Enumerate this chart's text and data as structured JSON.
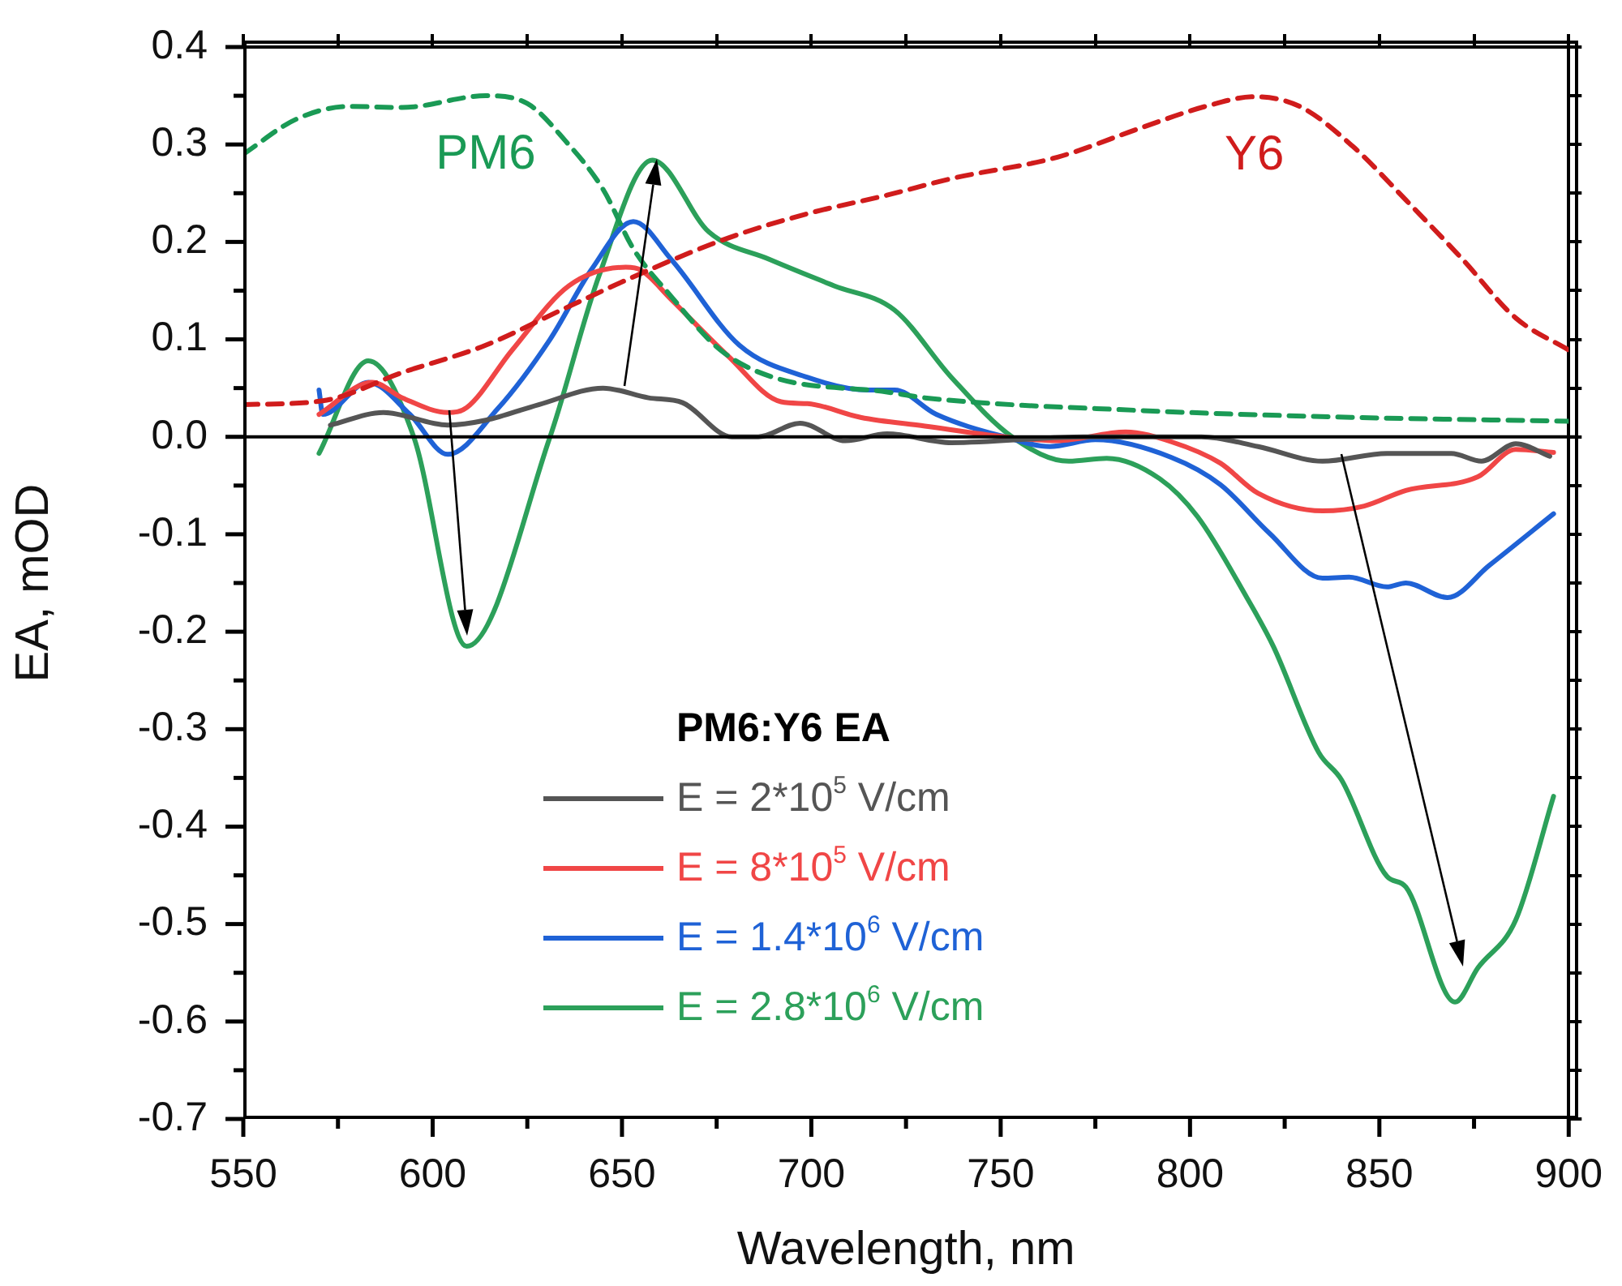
{
  "chart_data": {
    "type": "line",
    "xlabel": "Wavelength, nm",
    "ylabel": "EA, mOD",
    "legend_title": "PM6:Y6 EA",
    "legend": "bottom",
    "grid": false,
    "line_style": "solid",
    "marker": "none",
    "xlim": [
      550,
      900
    ],
    "xticks": [
      550,
      {
        "value": 575,
        "label": null
      },
      600,
      {
        "value": 625,
        "label": null
      },
      650,
      {
        "value": 675,
        "label": null
      },
      700,
      {
        "value": 725,
        "label": null
      },
      750,
      {
        "value": 775,
        "label": null
      },
      800,
      {
        "value": 825,
        "label": null
      },
      850,
      {
        "value": 875,
        "label": null
      },
      900
    ],
    "ylim": [
      -0.7,
      0.4
    ],
    "yticks": [
      -0.7,
      {
        "value": -0.65,
        "label": null
      },
      -0.6,
      {
        "value": -0.55,
        "label": null
      },
      -0.5,
      {
        "value": -0.45,
        "label": null
      },
      -0.4,
      {
        "value": -0.35,
        "label": null
      },
      -0.3,
      {
        "value": -0.25,
        "label": null
      },
      -0.2,
      {
        "value": -0.15,
        "label": null
      },
      -0.1,
      {
        "value": -0.05,
        "label": null
      },
      {
        "value": 0,
        "label": "0.0"
      },
      {
        "value": 0.05,
        "label": null
      },
      0.1,
      {
        "value": 0.15,
        "label": null
      },
      0.2,
      {
        "value": 0.25,
        "label": null
      },
      0.3,
      {
        "value": 0.35,
        "label": null
      },
      0.4
    ],
    "ref_lines": [
      {
        "axis": "y",
        "value": 0,
        "color": "#000000"
      }
    ],
    "series": [
      {
        "name": "PM6",
        "color": "#1a9a55",
        "line_style": "dashed",
        "x": [
          550,
          564,
          578,
          592,
          614,
          625,
          635,
          645,
          653,
          663,
          676,
          690,
          720,
          730,
          787,
          843,
          900
        ],
        "values": [
          0.29,
          0.326,
          0.339,
          0.338,
          0.35,
          0.342,
          0.304,
          0.254,
          0.193,
          0.144,
          0.089,
          0.061,
          0.046,
          0.04,
          0.027,
          0.02,
          0.016
        ]
      },
      {
        "name": "Y6",
        "color": "#d01c1c",
        "line_style": "dashed",
        "x": [
          550,
          571,
          592,
          614,
          635,
          657,
          678,
          699,
          720,
          737,
          765,
          787,
          804,
          817,
          829,
          843,
          857,
          872,
          886,
          900
        ],
        "values": [
          0.033,
          0.037,
          0.066,
          0.094,
          0.132,
          0.171,
          0.204,
          0.229,
          0.248,
          0.265,
          0.287,
          0.317,
          0.339,
          0.349,
          0.339,
          0.298,
          0.243,
          0.182,
          0.122,
          0.089
        ]
      },
      {
        "name": "E = 2*10$^{5}$ V/cm",
        "color": "#555555",
        "x": [
          573,
          587,
          604,
          614,
          628,
          645,
          657,
          666,
          679,
          686,
          697,
          709,
          720,
          737,
          772,
          803,
          818,
          835,
          852,
          869,
          877,
          886,
          895
        ],
        "values": [
          0.012,
          0.025,
          0.012,
          0.017,
          0.033,
          0.05,
          0.04,
          0.035,
          0,
          0,
          0.014,
          -0.004,
          0.003,
          -0.006,
          0,
          0,
          -0.01,
          -0.025,
          -0.017,
          -0.017,
          -0.025,
          -0.007,
          -0.02
        ]
      },
      {
        "name": "E = 8*10$^{5}$ V/cm",
        "color": "#f04646",
        "x": [
          570,
          584,
          592,
          604,
          609,
          621,
          636,
          651,
          655,
          663,
          678,
          692,
          699,
          713,
          730,
          751,
          765,
          783,
          795,
          808,
          818,
          835,
          846,
          857,
          876,
          886,
          896
        ],
        "values": [
          0.023,
          0.056,
          0.04,
          0.025,
          0.03,
          0.089,
          0.155,
          0.174,
          0.171,
          0.141,
          0.083,
          0.036,
          0.034,
          0.02,
          0.011,
          0,
          -0.004,
          0.005,
          -0.005,
          -0.027,
          -0.058,
          -0.076,
          -0.071,
          -0.055,
          -0.041,
          -0.013,
          -0.016
        ]
      },
      {
        "name": "E = 1.4*10$^{6}$ V/cm",
        "color": "#1f62d6",
        "x": [
          570,
          571,
          583,
          594,
          604,
          617,
          631,
          642,
          653,
          663,
          681,
          699,
          715,
          722,
          733,
          751,
          763,
          775,
          795,
          808,
          821,
          835,
          842,
          852,
          857,
          868,
          879,
          896
        ],
        "values": [
          0.048,
          0.023,
          0.056,
          0.023,
          -0.018,
          0.028,
          0.1,
          0.172,
          0.221,
          0.182,
          0.094,
          0.061,
          0.048,
          0.048,
          0.023,
          0,
          -0.01,
          -0.003,
          -0.021,
          -0.049,
          -0.099,
          -0.145,
          -0.144,
          -0.154,
          -0.15,
          -0.165,
          -0.132,
          -0.079
        ]
      },
      {
        "name": "E = 2.8*10$^{6}$ V/cm",
        "color": "#2ca05a",
        "x": [
          570,
          583,
          595,
          609,
          631,
          644,
          658,
          673,
          689,
          706,
          722,
          737,
          753,
          768,
          778,
          792,
          802,
          815,
          822,
          834,
          840,
          852,
          857,
          870,
          876,
          886,
          896
        ],
        "values": [
          -0.017,
          0.078,
          0,
          -0.215,
          0,
          0.166,
          0.284,
          0.21,
          0.182,
          0.155,
          0.13,
          0.061,
          0,
          -0.025,
          -0.022,
          -0.043,
          -0.082,
          -0.165,
          -0.215,
          -0.324,
          -0.352,
          -0.451,
          -0.462,
          -0.58,
          -0.545,
          -0.496,
          -0.369
        ]
      }
    ]
  }
}
